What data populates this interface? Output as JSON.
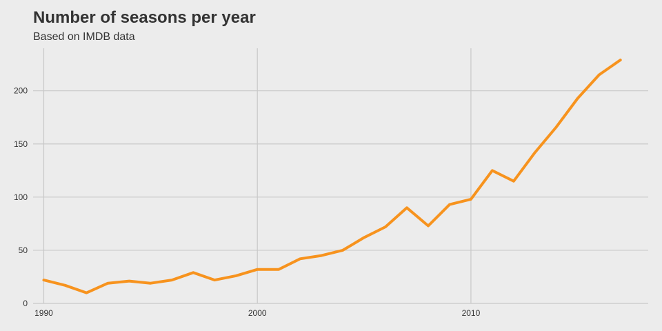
{
  "chart_data": {
    "type": "line",
    "title": "Number of seasons per year",
    "subtitle": "Based on IMDB data",
    "xlabel": "",
    "ylabel": "",
    "x_ticks": [
      1990,
      2000,
      2010
    ],
    "y_ticks": [
      0,
      50,
      100,
      150,
      200
    ],
    "xlim": [
      1989.5,
      2018.3
    ],
    "ylim": [
      0,
      240
    ],
    "grid": true,
    "colors": {
      "line": "#f7931e",
      "grid": "#c8c8c8",
      "background": "#ececec",
      "text": "#333333"
    },
    "series": [
      {
        "x": [
          1990,
          1991,
          1992,
          1993,
          1994,
          1995,
          1996,
          1997,
          1998,
          1999,
          2000,
          2001,
          2002,
          2003,
          2004,
          2005,
          2006,
          2007,
          2008,
          2009,
          2010,
          2011,
          2012,
          2013,
          2014,
          2015,
          2016,
          2017
        ],
        "values": [
          22,
          17,
          10,
          19,
          21,
          19,
          22,
          29,
          22,
          26,
          32,
          32,
          42,
          45,
          50,
          62,
          72,
          90,
          73,
          93,
          98,
          125,
          115,
          142,
          166,
          193,
          215,
          229
        ]
      }
    ]
  }
}
